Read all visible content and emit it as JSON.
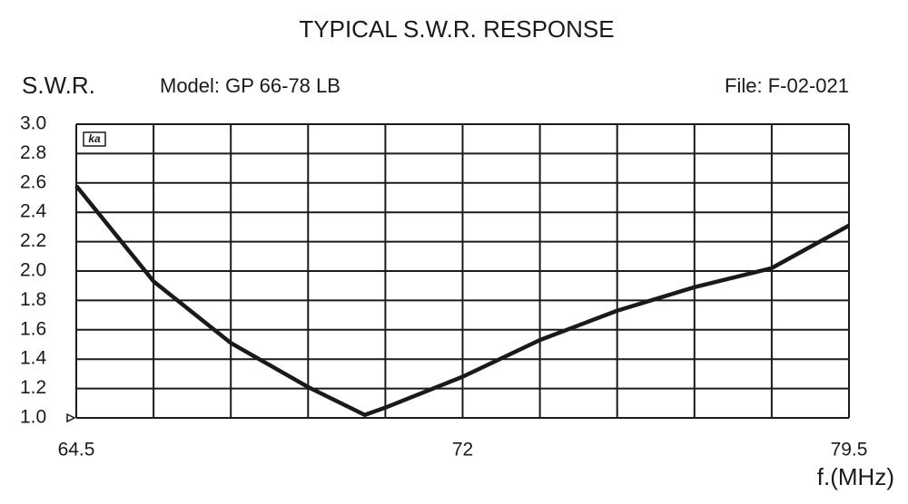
{
  "chart_data": {
    "type": "line",
    "title": "TYPICAL S.W.R. RESPONSE",
    "y_label": "S.W.R.",
    "model": "Model:  GP 66-78 LB",
    "file": "File:  F-02-021",
    "logo": "ka",
    "x_label": "f.(MHz)",
    "xlim": [
      64.5,
      79.5
    ],
    "xticks": [
      64.5,
      72,
      79.5
    ],
    "xgrid": [
      64.5,
      66,
      67.5,
      69,
      70.5,
      72,
      73.5,
      75,
      76.5,
      78,
      79.5
    ],
    "ylim": [
      1,
      3
    ],
    "yticks": [
      {
        "value": 1,
        "label": "1.0"
      },
      1.2,
      1.4,
      1.6,
      1.8,
      {
        "value": 2,
        "label": "2.0"
      },
      2.2,
      2.4,
      2.6,
      2.8,
      {
        "value": 3,
        "label": "3.0"
      }
    ],
    "grid": true,
    "series": [
      {
        "color": "#1a1a1a",
        "x": [
          64.5,
          66,
          67.5,
          69,
          70.1,
          70.5,
          72,
          73.5,
          75,
          76.5,
          78,
          79.5
        ],
        "values": [
          2.58,
          1.93,
          1.51,
          1.21,
          1.02,
          1.07,
          1.28,
          1.53,
          1.73,
          1.89,
          2.02,
          2.31
        ]
      }
    ]
  }
}
